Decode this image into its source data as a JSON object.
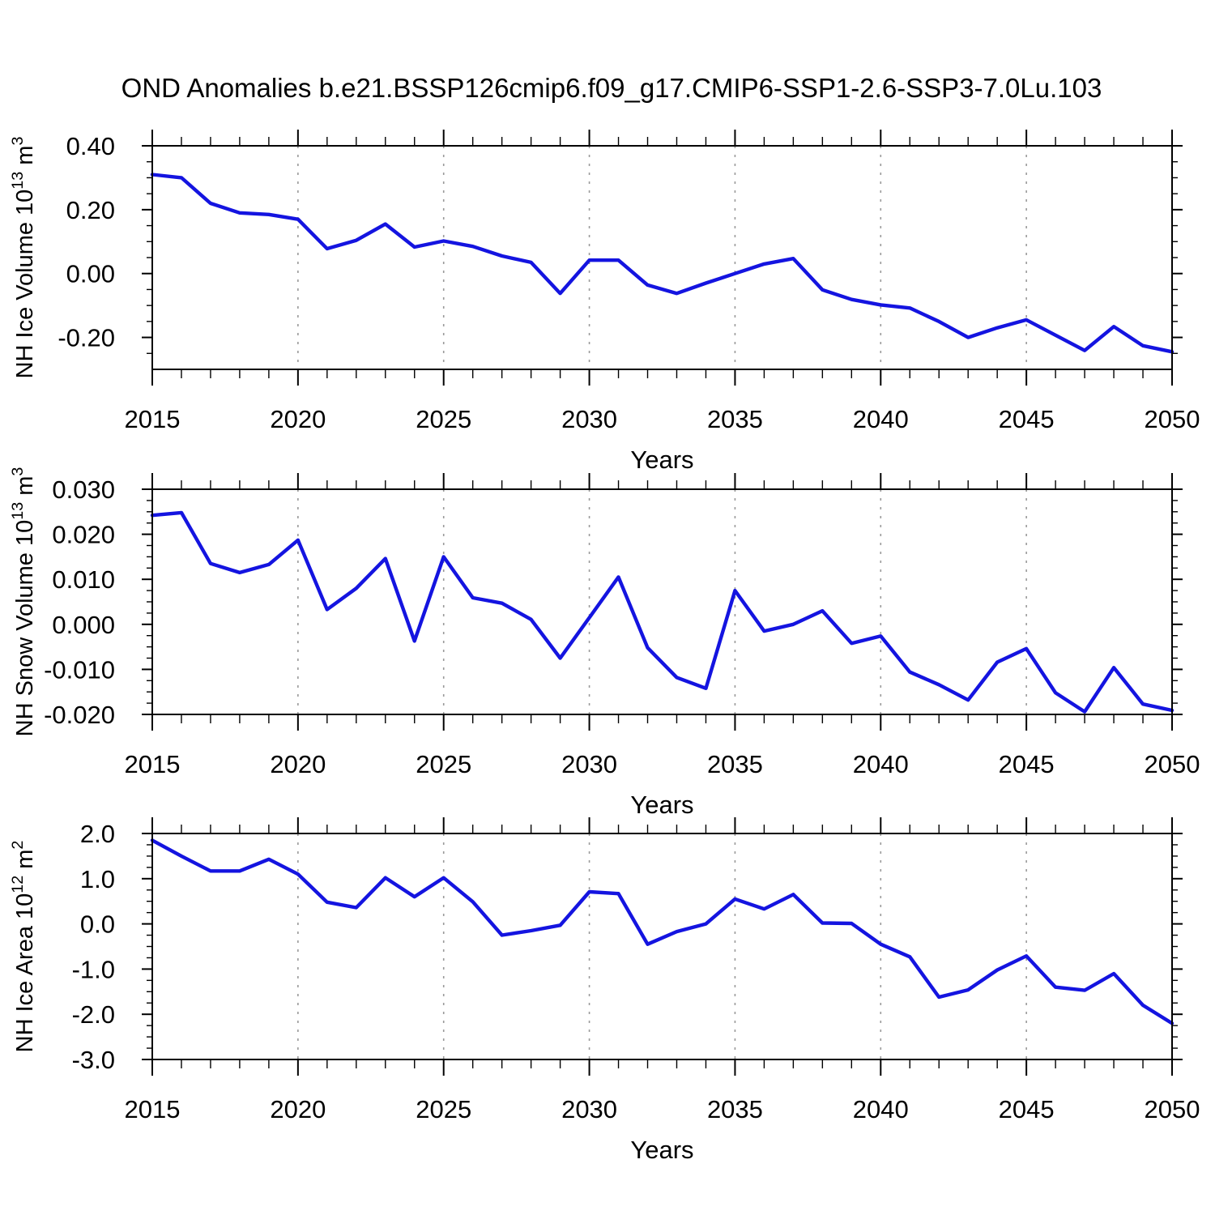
{
  "title": "OND Anomalies b.e21.BSSP126cmip6.f09_g17.CMIP6-SSP1-2.6-SSP3-7.0Lu.103",
  "style": {
    "line_color": "#1414e0",
    "gridline_color": "#9a9a9a",
    "frame_color": "#000000",
    "text_color": "#000000"
  },
  "chart_data": [
    {
      "type": "line",
      "panel": "nh-ice-volume",
      "ylabel": "NH Ice Volume 10^13 m^3",
      "ylabel_parts": [
        {
          "t": "NH Ice Volume 10"
        },
        {
          "t": "13",
          "sup": true
        },
        {
          "t": " m"
        },
        {
          "t": "3",
          "sup": true
        }
      ],
      "xlabel": "Years",
      "x": [
        2015,
        2016,
        2017,
        2018,
        2019,
        2020,
        2021,
        2022,
        2023,
        2024,
        2025,
        2026,
        2027,
        2028,
        2029,
        2030,
        2031,
        2032,
        2033,
        2034,
        2035,
        2036,
        2037,
        2038,
        2039,
        2040,
        2041,
        2042,
        2043,
        2044,
        2045,
        2046,
        2047,
        2048,
        2049,
        2050
      ],
      "values": [
        0.31,
        0.3,
        0.22,
        0.19,
        0.185,
        0.17,
        0.078,
        0.104,
        0.155,
        0.083,
        0.102,
        0.085,
        0.055,
        0.035,
        -0.062,
        0.042,
        0.042,
        -0.036,
        -0.062,
        -0.03,
        0.0,
        0.03,
        0.047,
        -0.051,
        -0.081,
        -0.098,
        -0.108,
        -0.15,
        -0.2,
        -0.17,
        -0.145,
        -0.193,
        -0.241,
        -0.166,
        -0.226,
        -0.245
      ],
      "xlim": [
        2015,
        2050
      ],
      "ylim": [
        -0.3,
        0.4
      ],
      "x_major_ticks": [
        2015,
        2020,
        2025,
        2030,
        2035,
        2040,
        2045,
        2050
      ],
      "x_minor_step": 1,
      "x_gridlines": [
        2020,
        2025,
        2030,
        2035,
        2040,
        2045
      ],
      "y_major_ticks": [
        {
          "v": 0.4,
          "label": "0.40"
        },
        {
          "v": 0.2,
          "label": "0.20"
        },
        {
          "v": 0.0,
          "label": "0.00"
        },
        {
          "v": -0.2,
          "label": "-0.20"
        }
      ],
      "y_minor_step": 0.05,
      "grid": "vertical-dashed",
      "legend": "none"
    },
    {
      "type": "line",
      "panel": "nh-snow-volume",
      "ylabel": "NH Snow Volume 10^13 m^3",
      "ylabel_parts": [
        {
          "t": "NH Snow Volume 10"
        },
        {
          "t": "13",
          "sup": true
        },
        {
          "t": " m"
        },
        {
          "t": "3",
          "sup": true
        }
      ],
      "xlabel": "Years",
      "x": [
        2015,
        2016,
        2017,
        2018,
        2019,
        2020,
        2021,
        2022,
        2023,
        2024,
        2025,
        2026,
        2027,
        2028,
        2029,
        2030,
        2031,
        2032,
        2033,
        2034,
        2035,
        2036,
        2037,
        2038,
        2039,
        2040,
        2041,
        2042,
        2043,
        2044,
        2045,
        2046,
        2047,
        2048,
        2049,
        2050
      ],
      "values": [
        0.0242,
        0.0248,
        0.0135,
        0.0115,
        0.0133,
        0.0187,
        0.0033,
        0.008,
        0.0146,
        -0.0037,
        0.015,
        0.0059,
        0.0047,
        0.0011,
        -0.0075,
        0.0015,
        0.0105,
        -0.0052,
        -0.0118,
        -0.0142,
        0.0075,
        -0.0015,
        0.0,
        0.003,
        -0.0042,
        -0.0026,
        -0.0106,
        -0.0134,
        -0.0168,
        -0.0084,
        -0.0054,
        -0.0152,
        -0.0194,
        -0.0096,
        -0.0177,
        -0.0191
      ],
      "xlim": [
        2015,
        2050
      ],
      "ylim": [
        -0.02,
        0.03
      ],
      "x_major_ticks": [
        2015,
        2020,
        2025,
        2030,
        2035,
        2040,
        2045,
        2050
      ],
      "x_minor_step": 1,
      "x_gridlines": [
        2020,
        2025,
        2030,
        2035,
        2040,
        2045
      ],
      "y_major_ticks": [
        {
          "v": 0.03,
          "label": "0.030"
        },
        {
          "v": 0.02,
          "label": "0.020"
        },
        {
          "v": 0.01,
          "label": "0.010"
        },
        {
          "v": 0.0,
          "label": "0.000"
        },
        {
          "v": -0.01,
          "label": "-0.010"
        },
        {
          "v": -0.02,
          "label": "-0.020"
        }
      ],
      "y_minor_step": 0.0025,
      "grid": "vertical-dashed",
      "legend": "none"
    },
    {
      "type": "line",
      "panel": "nh-ice-area",
      "ylabel": "NH Ice Area 10^12 m^2",
      "ylabel_parts": [
        {
          "t": "NH Ice Area 10"
        },
        {
          "t": "12",
          "sup": true
        },
        {
          "t": " m"
        },
        {
          "t": "2",
          "sup": true
        }
      ],
      "xlabel": "Years",
      "x": [
        2015,
        2016,
        2017,
        2018,
        2019,
        2020,
        2021,
        2022,
        2023,
        2024,
        2025,
        2026,
        2027,
        2028,
        2029,
        2030,
        2031,
        2032,
        2033,
        2034,
        2035,
        2036,
        2037,
        2038,
        2039,
        2040,
        2041,
        2042,
        2043,
        2044,
        2045,
        2046,
        2047,
        2048,
        2049,
        2050
      ],
      "values": [
        1.85,
        1.5,
        1.17,
        1.17,
        1.43,
        1.1,
        0.48,
        0.36,
        1.02,
        0.6,
        1.02,
        0.49,
        -0.25,
        -0.15,
        -0.03,
        0.71,
        0.67,
        -0.45,
        -0.17,
        0.0,
        0.55,
        0.33,
        0.65,
        0.02,
        0.01,
        -0.45,
        -0.73,
        -1.62,
        -1.46,
        -1.02,
        -0.71,
        -1.4,
        -1.47,
        -1.1,
        -1.8,
        -2.2
      ],
      "xlim": [
        2015,
        2050
      ],
      "ylim": [
        -3.0,
        2.0
      ],
      "x_major_ticks": [
        2015,
        2020,
        2025,
        2030,
        2035,
        2040,
        2045,
        2050
      ],
      "x_minor_step": 1,
      "x_gridlines": [
        2020,
        2025,
        2030,
        2035,
        2040,
        2045
      ],
      "y_major_ticks": [
        {
          "v": 2.0,
          "label": "2.0"
        },
        {
          "v": 1.0,
          "label": "1.0"
        },
        {
          "v": 0.0,
          "label": "0.0"
        },
        {
          "v": -1.0,
          "label": "-1.0"
        },
        {
          "v": -2.0,
          "label": "-2.0"
        },
        {
          "v": -3.0,
          "label": "-3.0"
        }
      ],
      "y_minor_step": 0.25,
      "grid": "vertical-dashed",
      "legend": "none"
    }
  ]
}
